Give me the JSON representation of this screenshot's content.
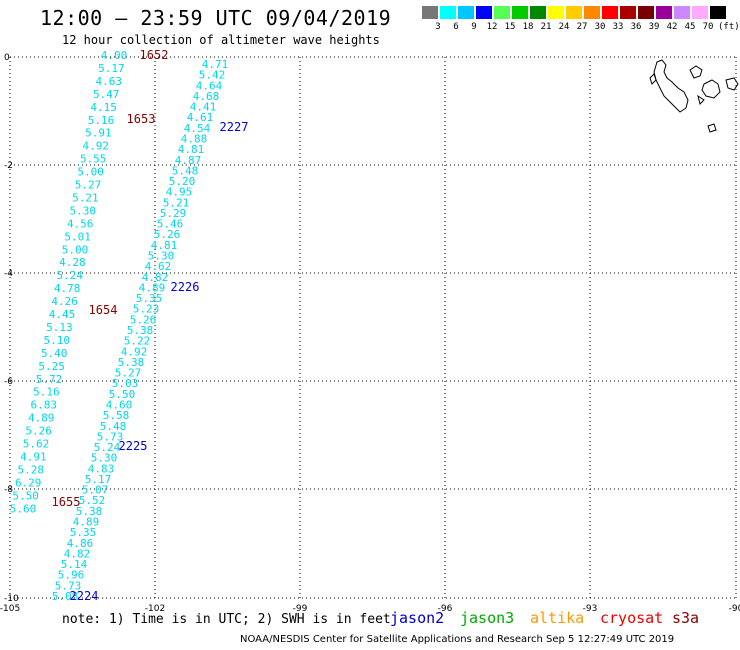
{
  "header": {
    "title": "12:00 – 23:59 UTC 09/04/2019",
    "subtitle": "12 hour collection of altimeter wave heights"
  },
  "legend": {
    "colors": [
      "#777777",
      "#00ffff",
      "#00c8ff",
      "#0000ff",
      "#55ff55",
      "#00cc00",
      "#008800",
      "#ffff00",
      "#ffcc00",
      "#ff8800",
      "#ff0000",
      "#aa0000",
      "#770000",
      "#990099",
      "#cc88ff",
      "#ffaaff",
      "#000000"
    ],
    "labels": [
      "3",
      "6",
      "9",
      "12",
      "15",
      "18",
      "21",
      "24",
      "27",
      "30",
      "33",
      "36",
      "39",
      "42",
      "45",
      "70",
      "(ft)"
    ]
  },
  "axes": {
    "lon_labels": [
      "-105",
      "-102",
      "-99",
      "-96",
      "-93",
      "-90"
    ],
    "lat_labels": [
      "0",
      "-2",
      "-4",
      "-6",
      "-8",
      "-10"
    ]
  },
  "track_left": {
    "values": [
      "4.00",
      "5.17",
      "4.63",
      "5.47",
      "4.15",
      "5.16",
      "5.91",
      "4.92",
      "5.55",
      "5.00",
      "5.27",
      "5.21",
      "5.30",
      "4.56",
      "5.01",
      "5.00",
      "4.28",
      "5.24",
      "4.78",
      "4.26",
      "4.45",
      "5.13",
      "5.10",
      "5.40",
      "5.25",
      "5.72",
      "5.16",
      "6.83",
      "4.89",
      "5.26",
      "5.62",
      "4.91",
      "5.28",
      "6.29",
      "5.50",
      "5.60"
    ]
  },
  "track_right": {
    "values": [
      "4.71",
      "5.42",
      "4.64",
      "4.68",
      "4.41",
      "4.61",
      "4.54",
      "4.88",
      "4.81",
      "4.87",
      "5.48",
      "5.20",
      "4.95",
      "5.21",
      "5.29",
      "5.46",
      "5.26",
      "4.81",
      "5.30",
      "4.62",
      "4.82",
      "4.89",
      "5.35",
      "5.23",
      "5.26",
      "5.38",
      "5.22",
      "4.92",
      "5.38",
      "5.27",
      "5.03",
      "5.50",
      "4.60",
      "5.58",
      "5.48",
      "5.73",
      "5.24",
      "5.30",
      "4.83",
      "5.17",
      "5.07",
      "5.52",
      "5.38",
      "4.89",
      "5.35",
      "4.86",
      "4.82",
      "5.14",
      "5.96",
      "5.73",
      "5.08"
    ]
  },
  "time_labels": [
    {
      "text": "1652",
      "color": "#880000"
    },
    {
      "text": "1653",
      "color": "#880000"
    },
    {
      "text": "1654",
      "color": "#880000"
    },
    {
      "text": "1655",
      "color": "#880000"
    },
    {
      "text": "2227",
      "color": "#0000cc"
    },
    {
      "text": "2226",
      "color": "#0000cc"
    },
    {
      "text": "2225",
      "color": "#0000cc"
    },
    {
      "text": "2224",
      "color": "#0000cc"
    }
  ],
  "footer": {
    "note": "note: 1) Time is in UTC; 2) SWH is in feet",
    "credit": "NOAA/NESDIS Center for Satellite Applications and Research   Sep  5 12:27:49 UTC 2019",
    "satellites": [
      {
        "name": "jason2",
        "color": "#0000cc"
      },
      {
        "name": "jason3",
        "color": "#00aa00"
      },
      {
        "name": "altika",
        "color": "#ff9900"
      },
      {
        "name": "cryosat",
        "color": "#ee0000"
      },
      {
        "name": "s3a",
        "color": "#880000"
      }
    ]
  }
}
